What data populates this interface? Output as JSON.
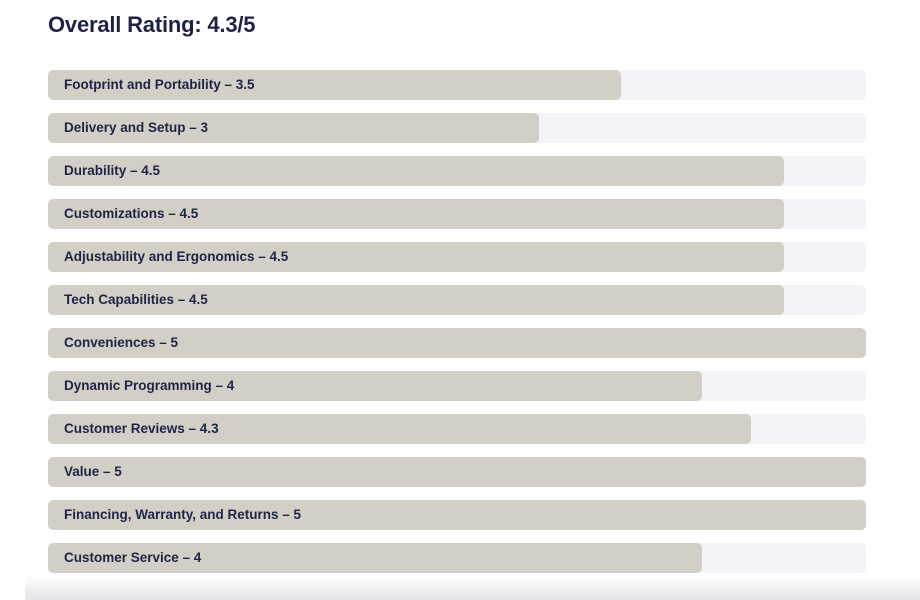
{
  "title": "Overall Rating: 4.3/5",
  "colors": {
    "background": "#ffffff",
    "bar_fill": "#d2cfc7",
    "bar_track": "#f4f4f8",
    "text": "#1f2446"
  },
  "chart_data": {
    "type": "bar",
    "orientation": "horizontal",
    "title": "Overall Rating: 4.3/5",
    "xlim": [
      0,
      5
    ],
    "max": 5,
    "grid": false,
    "legend": false,
    "categories": [
      "Footprint and Portability",
      "Delivery and Setup",
      "Durability",
      "Customizations",
      "Adjustability and Ergonomics",
      "Tech Capabilities",
      "Conveniences",
      "Dynamic Programming",
      "Customer Reviews",
      "Value",
      "Financing, Warranty, and Returns",
      "Customer Service"
    ],
    "values": [
      3.5,
      3,
      4.5,
      4.5,
      4.5,
      4.5,
      5,
      4,
      4.3,
      5,
      5,
      4
    ],
    "labels": [
      "Footprint and Portability – 3.5",
      "Delivery and Setup – 3",
      "Durability – 4.5",
      "Customizations – 4.5",
      "Adjustability and Ergonomics – 4.5",
      "Tech Capabilities – 4.5",
      "Conveniences – 5",
      "Dynamic Programming – 4",
      "Customer Reviews – 4.3",
      "Value – 5",
      "Financing, Warranty, and Returns – 5",
      "Customer Service – 4"
    ]
  }
}
